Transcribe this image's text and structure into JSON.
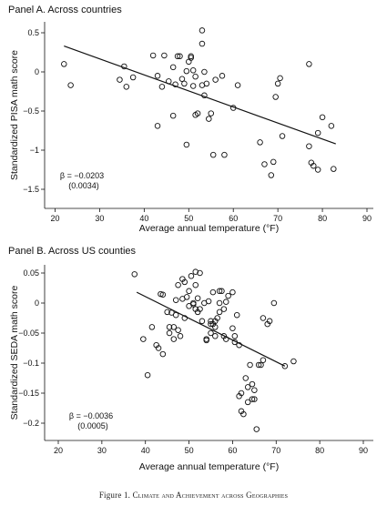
{
  "figure": {
    "caption_label": "Figure 1.",
    "caption_text": "Climate and Achievement across Geographies"
  },
  "chart_data": [
    {
      "type": "scatter",
      "title": "Panel A. Across countries",
      "xlabel": "Average annual temperature (°F)",
      "ylabel": "Standardized PISA math score",
      "xlim": [
        20,
        90
      ],
      "ylim": [
        -1.55,
        0.6
      ],
      "xticks": [
        20,
        30,
        40,
        50,
        60,
        70,
        80,
        90
      ],
      "yticks": [
        -1.5,
        -1,
        -0.5,
        0,
        0.5
      ],
      "ytick_labels": [
        "−1.5",
        "−1",
        "−0.5",
        "0",
        "0.5"
      ],
      "grid": false,
      "marker": "hollow circle",
      "fit_line": {
        "x": [
          22,
          83
        ],
        "y": [
          0.33,
          -0.92
        ]
      },
      "annotation": {
        "beta": "β = −0.0203",
        "se": "(0.0034)"
      },
      "points": [
        [
          22,
          0.1
        ],
        [
          23.5,
          -0.17
        ],
        [
          34.5,
          -0.1
        ],
        [
          35.5,
          0.07
        ],
        [
          36,
          -0.19
        ],
        [
          37.5,
          -0.07
        ],
        [
          42,
          0.21
        ],
        [
          43,
          -0.05
        ],
        [
          43,
          -0.69
        ],
        [
          44,
          -0.19
        ],
        [
          44.5,
          0.21
        ],
        [
          45.5,
          -0.12
        ],
        [
          46.5,
          0.06
        ],
        [
          46.5,
          -0.56
        ],
        [
          47,
          -0.16
        ],
        [
          47.5,
          0.2
        ],
        [
          48,
          0.2
        ],
        [
          48.5,
          -0.09
        ],
        [
          49,
          -0.15
        ],
        [
          49.5,
          0.01
        ],
        [
          49.5,
          -0.93
        ],
        [
          50,
          0.13
        ],
        [
          50.5,
          0.18
        ],
        [
          50.5,
          0.2
        ],
        [
          51,
          -0.18
        ],
        [
          51,
          0.02
        ],
        [
          51.5,
          -0.55
        ],
        [
          51.5,
          -0.06
        ],
        [
          52,
          -0.53
        ],
        [
          53,
          0.53
        ],
        [
          53,
          0.36
        ],
        [
          53,
          -0.17
        ],
        [
          53.5,
          0.0
        ],
        [
          53.5,
          -0.3
        ],
        [
          54,
          -0.15
        ],
        [
          54.5,
          -0.6
        ],
        [
          55,
          -0.53
        ],
        [
          55.5,
          -1.06
        ],
        [
          56,
          -0.1
        ],
        [
          57.5,
          -0.05
        ],
        [
          58,
          -1.06
        ],
        [
          60,
          -0.46
        ],
        [
          61,
          -0.17
        ],
        [
          66,
          -0.9
        ],
        [
          67,
          -1.18
        ],
        [
          68.5,
          -1.32
        ],
        [
          69,
          -1.15
        ],
        [
          69.5,
          -0.32
        ],
        [
          70,
          -0.15
        ],
        [
          70.5,
          -0.08
        ],
        [
          71,
          -0.82
        ],
        [
          77,
          0.1
        ],
        [
          77,
          -0.95
        ],
        [
          77.5,
          -1.16
        ],
        [
          78,
          -1.2
        ],
        [
          79,
          -1.25
        ],
        [
          79,
          -0.78
        ],
        [
          80,
          -0.58
        ],
        [
          82,
          -0.69
        ],
        [
          82.5,
          -1.24
        ]
      ]
    },
    {
      "type": "scatter",
      "title": "Panel B. Across US counties",
      "xlabel": "Average annual temperature (°F)",
      "ylabel": "Standardized SEDA math score",
      "xlim": [
        20,
        90
      ],
      "ylim": [
        -0.215,
        0.055
      ],
      "xticks": [
        20,
        30,
        40,
        50,
        60,
        70,
        80,
        90
      ],
      "yticks": [
        -0.2,
        -0.15,
        -0.1,
        -0.05,
        0,
        0.05
      ],
      "ytick_labels": [
        "−0.2",
        "−0.15",
        "−0.1",
        "−0.05",
        "0",
        "0.05"
      ],
      "grid": false,
      "marker": "hollow circle",
      "fit_line": {
        "x": [
          38,
          72
        ],
        "y": [
          0.018,
          -0.105
        ]
      },
      "annotation": {
        "beta": "β = −0.0036",
        "se": "(0.0005)"
      },
      "points": [
        [
          37.5,
          0.048
        ],
        [
          39.5,
          -0.06
        ],
        [
          40.5,
          -0.12
        ],
        [
          41.5,
          -0.04
        ],
        [
          42.5,
          -0.07
        ],
        [
          43,
          -0.075
        ],
        [
          43.5,
          0.015
        ],
        [
          44,
          0.014
        ],
        [
          44,
          -0.085
        ],
        [
          45,
          -0.015
        ],
        [
          45.5,
          -0.05
        ],
        [
          45.5,
          -0.04
        ],
        [
          46,
          -0.016
        ],
        [
          46.5,
          -0.04
        ],
        [
          46.5,
          -0.06
        ],
        [
          47,
          0.005
        ],
        [
          47,
          -0.02
        ],
        [
          47.5,
          0.03
        ],
        [
          47.5,
          -0.045
        ],
        [
          48,
          -0.055
        ],
        [
          48.5,
          0.04
        ],
        [
          48.5,
          0.007
        ],
        [
          49,
          -0.025
        ],
        [
          49,
          0.035
        ],
        [
          49.5,
          0.01
        ],
        [
          50,
          0.02
        ],
        [
          50,
          -0.005
        ],
        [
          50.5,
          0.045
        ],
        [
          51,
          -0.002
        ],
        [
          51,
          0.0
        ],
        [
          51.5,
          0.052
        ],
        [
          51.5,
          0.03
        ],
        [
          51.5,
          -0.01
        ],
        [
          52,
          -0.015
        ],
        [
          52,
          0.008
        ],
        [
          52.5,
          0.05
        ],
        [
          52.5,
          -0.01
        ],
        [
          53,
          -0.03
        ],
        [
          53.5,
          0.0
        ],
        [
          54,
          -0.06
        ],
        [
          54,
          -0.062
        ],
        [
          54.5,
          0.003
        ],
        [
          55,
          -0.03
        ],
        [
          55,
          -0.035
        ],
        [
          55,
          -0.05
        ],
        [
          55.5,
          -0.035
        ],
        [
          55.5,
          0.018
        ],
        [
          56,
          -0.03
        ],
        [
          56,
          -0.04
        ],
        [
          56,
          -0.055
        ],
        [
          56.5,
          -0.025
        ],
        [
          57,
          0.02
        ],
        [
          57,
          -0.015
        ],
        [
          57,
          0.0
        ],
        [
          57.5,
          0.02
        ],
        [
          58,
          -0.01
        ],
        [
          58,
          -0.055
        ],
        [
          58.5,
          -0.06
        ],
        [
          58.5,
          0.002
        ],
        [
          59,
          0.012
        ],
        [
          60,
          0.018
        ],
        [
          60,
          -0.042
        ],
        [
          60.5,
          -0.065
        ],
        [
          60.5,
          -0.055
        ],
        [
          61,
          -0.02
        ],
        [
          61.5,
          -0.07
        ],
        [
          61.5,
          -0.155
        ],
        [
          62,
          -0.15
        ],
        [
          62,
          -0.18
        ],
        [
          62.5,
          -0.185
        ],
        [
          63,
          -0.125
        ],
        [
          63.5,
          -0.165
        ],
        [
          63.5,
          -0.14
        ],
        [
          64,
          -0.103
        ],
        [
          64.5,
          -0.135
        ],
        [
          64.5,
          -0.16
        ],
        [
          65,
          -0.16
        ],
        [
          65,
          -0.145
        ],
        [
          65.5,
          -0.21
        ],
        [
          66,
          -0.103
        ],
        [
          66.5,
          -0.103
        ],
        [
          67,
          -0.095
        ],
        [
          67,
          -0.025
        ],
        [
          68,
          -0.035
        ],
        [
          68.5,
          -0.03
        ],
        [
          69.5,
          0.0
        ],
        [
          72,
          -0.105
        ],
        [
          74,
          -0.097
        ]
      ]
    }
  ]
}
